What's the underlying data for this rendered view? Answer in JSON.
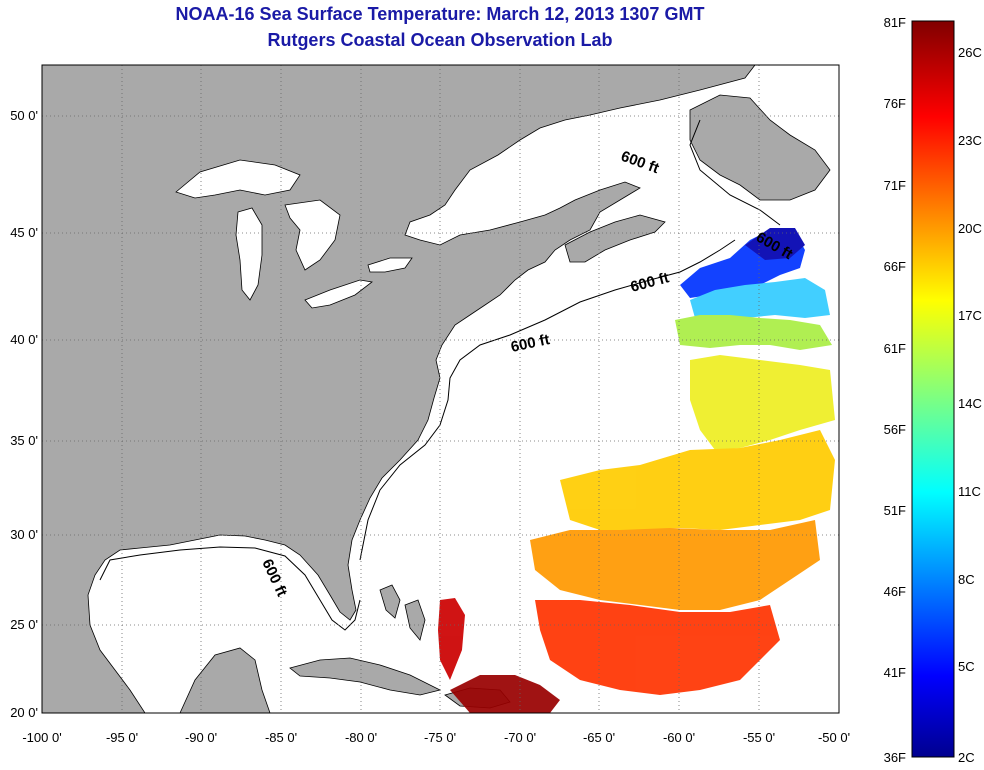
{
  "title": {
    "line1": "NOAA-16 Sea Surface Temperature:  March 12, 2013 1307 GMT",
    "line2": "Rutgers Coastal Ocean Observation Lab"
  },
  "colors": {
    "land": "#a9a9a9",
    "ocean": "#ffffff",
    "title": "#1a1aa6"
  },
  "map": {
    "lon_range": [
      -100,
      -50
    ],
    "lat_range": [
      20,
      52.5
    ],
    "lon_ticks": [
      "-100 0'",
      "-95 0'",
      "-90 0'",
      "-85 0'",
      "-80 0'",
      "-75 0'",
      "-70 0'",
      "-65 0'",
      "-60 0'",
      "-55 0'",
      "-50 0'"
    ],
    "lat_ticks": [
      "20 0'",
      "25 0'",
      "30 0'",
      "35 0'",
      "40 0'",
      "45 0'",
      "50 0'"
    ],
    "grid": "dotted",
    "contour_labels": [
      "600 ft",
      "600 ft",
      "600 ft",
      "600 ft",
      "600 ft"
    ]
  },
  "colorbar": {
    "fahrenheit": [
      "81F",
      "76F",
      "71F",
      "66F",
      "61F",
      "56F",
      "51F",
      "46F",
      "41F",
      "36F"
    ],
    "celsius": [
      "26C",
      "23C",
      "20C",
      "17C",
      "14C",
      "11C",
      "8C",
      "5C",
      "2C"
    ],
    "colormap": "jet"
  }
}
